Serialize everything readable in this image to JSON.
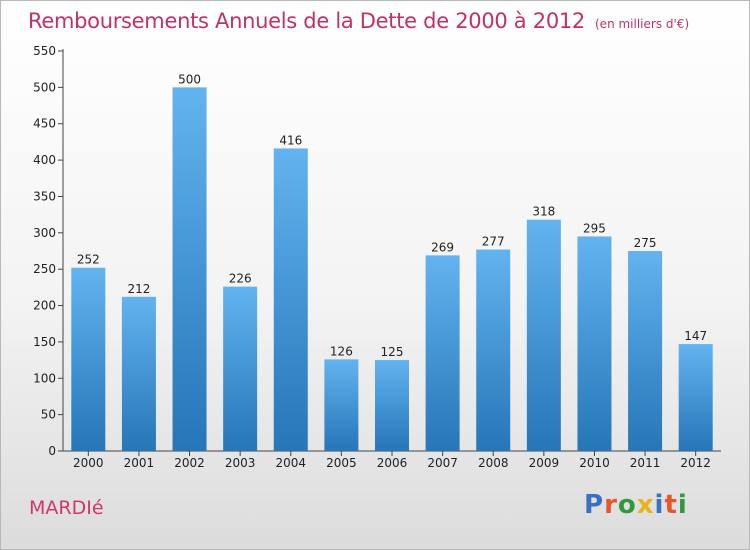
{
  "header": {
    "title": "Remboursements Annuels de la Dette de 2000 à 2012",
    "unit": "(en milliers d'€)"
  },
  "footer": {
    "commune": "MARDIé",
    "logo_letters": [
      {
        "char": "P",
        "color": "#3a6fc4"
      },
      {
        "char": "r",
        "color": "#e8552a"
      },
      {
        "char": "o",
        "color": "#2e9a3c"
      },
      {
        "char": "x",
        "color": "#e8b21a"
      },
      {
        "char": "i",
        "color": "#3a6fc4"
      },
      {
        "char": "t",
        "color": "#e8552a"
      },
      {
        "char": "i",
        "color": "#2e9a3c"
      }
    ]
  },
  "chart_data": {
    "type": "bar",
    "categories": [
      "2000",
      "2001",
      "2002",
      "2003",
      "2004",
      "2005",
      "2006",
      "2007",
      "2008",
      "2009",
      "2010",
      "2011",
      "2012"
    ],
    "values": [
      252,
      212,
      500,
      226,
      416,
      126,
      125,
      269,
      277,
      318,
      295,
      275,
      147
    ],
    "ylim": [
      0,
      550
    ],
    "yticks": [
      0,
      50,
      100,
      150,
      200,
      250,
      300,
      350,
      400,
      450,
      500,
      550
    ],
    "grid": false,
    "bar_color_top": "#62b3ef",
    "bar_color_bottom": "#2676b8"
  }
}
